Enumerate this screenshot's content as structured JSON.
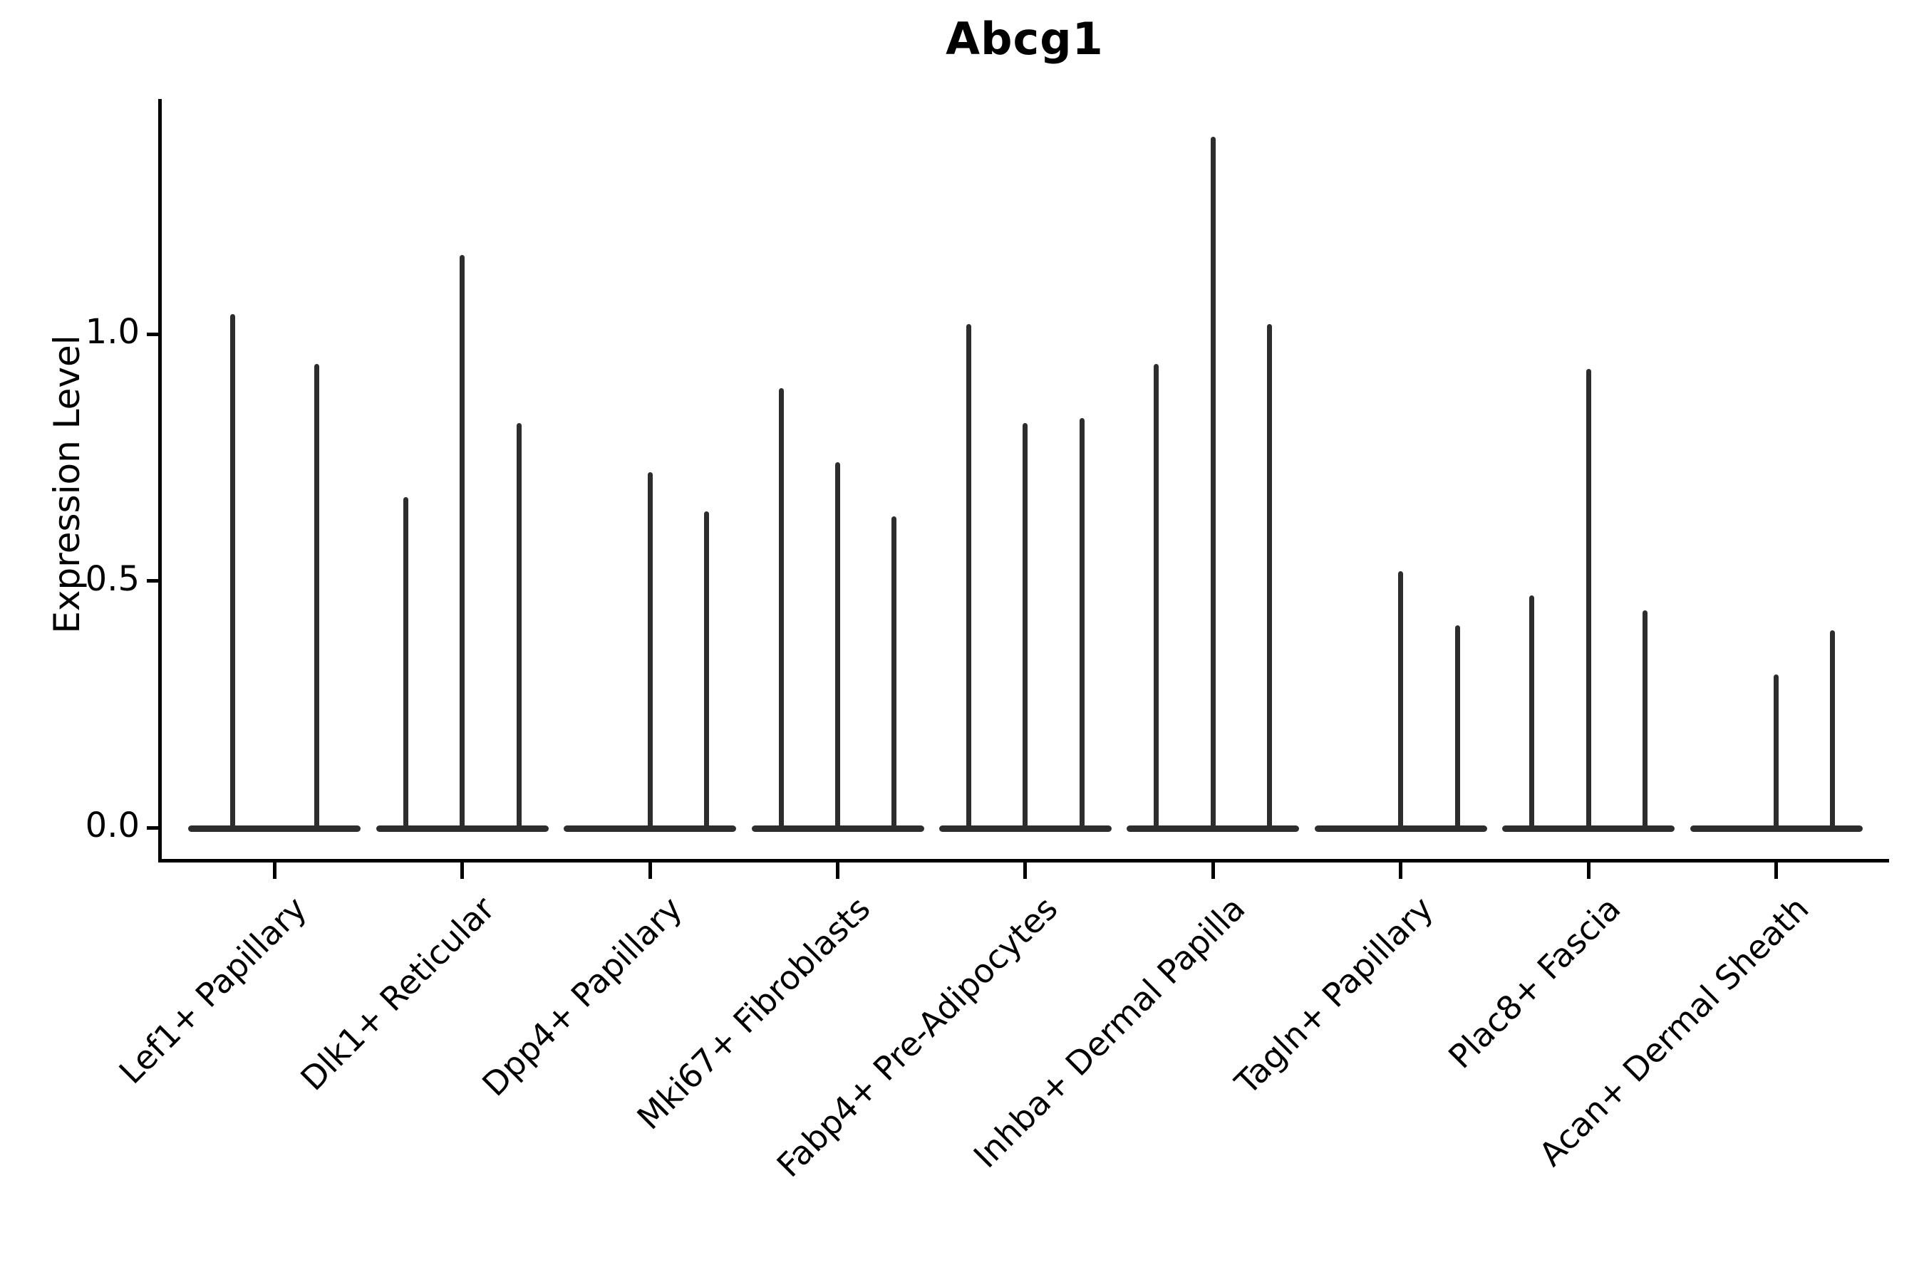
{
  "title": "Abcg1",
  "y_axis": {
    "label": "Expression Level",
    "tick_labels": [
      "0.0",
      "0.5",
      "1.0"
    ],
    "tick_values": [
      0.0,
      0.5,
      1.0
    ]
  },
  "colors": {
    "violin": "#2d2d2d",
    "axis": "#000000",
    "background": "#ffffff"
  },
  "chart_data": {
    "type": "violin",
    "title": "Abcg1",
    "xlabel": "",
    "ylabel": "Expression Level",
    "ylim": [
      -0.07,
      1.47
    ],
    "yticks": [
      0.0,
      0.5,
      1.0
    ],
    "grid": false,
    "legend": "none",
    "style": "thin spike violins with flat base at 0 (most cells zero expression)",
    "categories": [
      "Lef1+ Papillary",
      "Dlk1+ Reticular",
      "Dpp4+ Papillary",
      "Mki67+ Fibroblasts",
      "Fabp4+ Pre-Adipocytes",
      "Inhba+ Dermal Papilla",
      "Tagln+ Papillary",
      "Plac8+ Fascia",
      "Acan+ Dermal Sheath"
    ],
    "groups": [
      {
        "label": "Lef1+ Papillary",
        "spike_heights": [
          1.04,
          0.94
        ]
      },
      {
        "label": "Dlk1+ Reticular",
        "spike_heights": [
          0.67,
          1.16,
          0.82
        ]
      },
      {
        "label": "Dpp4+ Papillary",
        "spike_heights": [
          0.0,
          0.72,
          0.64
        ]
      },
      {
        "label": "Mki67+ Fibroblasts",
        "spike_heights": [
          0.89,
          0.74,
          0.63
        ]
      },
      {
        "label": "Fabp4+ Pre-Adipocytes",
        "spike_heights": [
          1.02,
          0.82,
          0.83
        ]
      },
      {
        "label": "Inhba+ Dermal Papilla",
        "spike_heights": [
          0.94,
          1.4,
          1.02
        ]
      },
      {
        "label": "Tagln+ Papillary",
        "spike_heights": [
          0.0,
          0.52,
          0.41
        ]
      },
      {
        "label": "Plac8+ Fascia",
        "spike_heights": [
          0.47,
          0.93,
          0.44
        ]
      },
      {
        "label": "Acan+ Dermal Sheath",
        "spike_heights": [
          0.0,
          0.31,
          0.4
        ]
      }
    ]
  }
}
